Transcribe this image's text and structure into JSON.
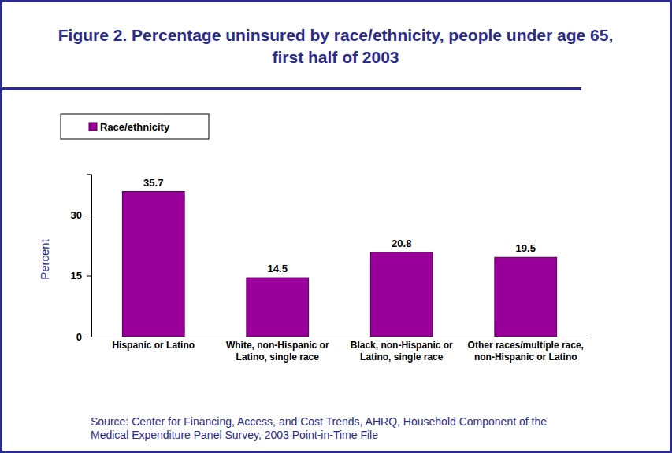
{
  "chart_data": {
    "type": "bar",
    "title": "Figure 2. Percentage uninsured by race/ethnicity, people under age 65, first half of 2003",
    "categories": [
      "Hispanic or Latino",
      "White, non-Hispanic or Latino, single race",
      "Black, non-Hispanic or Latino, single race",
      "Other races/multiple race, non-Hispanic or Latino"
    ],
    "series": [
      {
        "name": "Race/ethnicity",
        "color": "#990099",
        "values": [
          35.7,
          14.5,
          20.8,
          19.5
        ]
      }
    ],
    "y_label": "Percent",
    "ylim": [
      0,
      40
    ],
    "yticks": [
      0,
      15,
      30
    ],
    "grid": false,
    "legend": "top-left",
    "data_labels": true,
    "source": "Source: Center for Financing, Access, and Cost Trends, AHRQ, Household Component of the Medical Expenditure Panel Survey, 2003 Point-in-Time File"
  }
}
